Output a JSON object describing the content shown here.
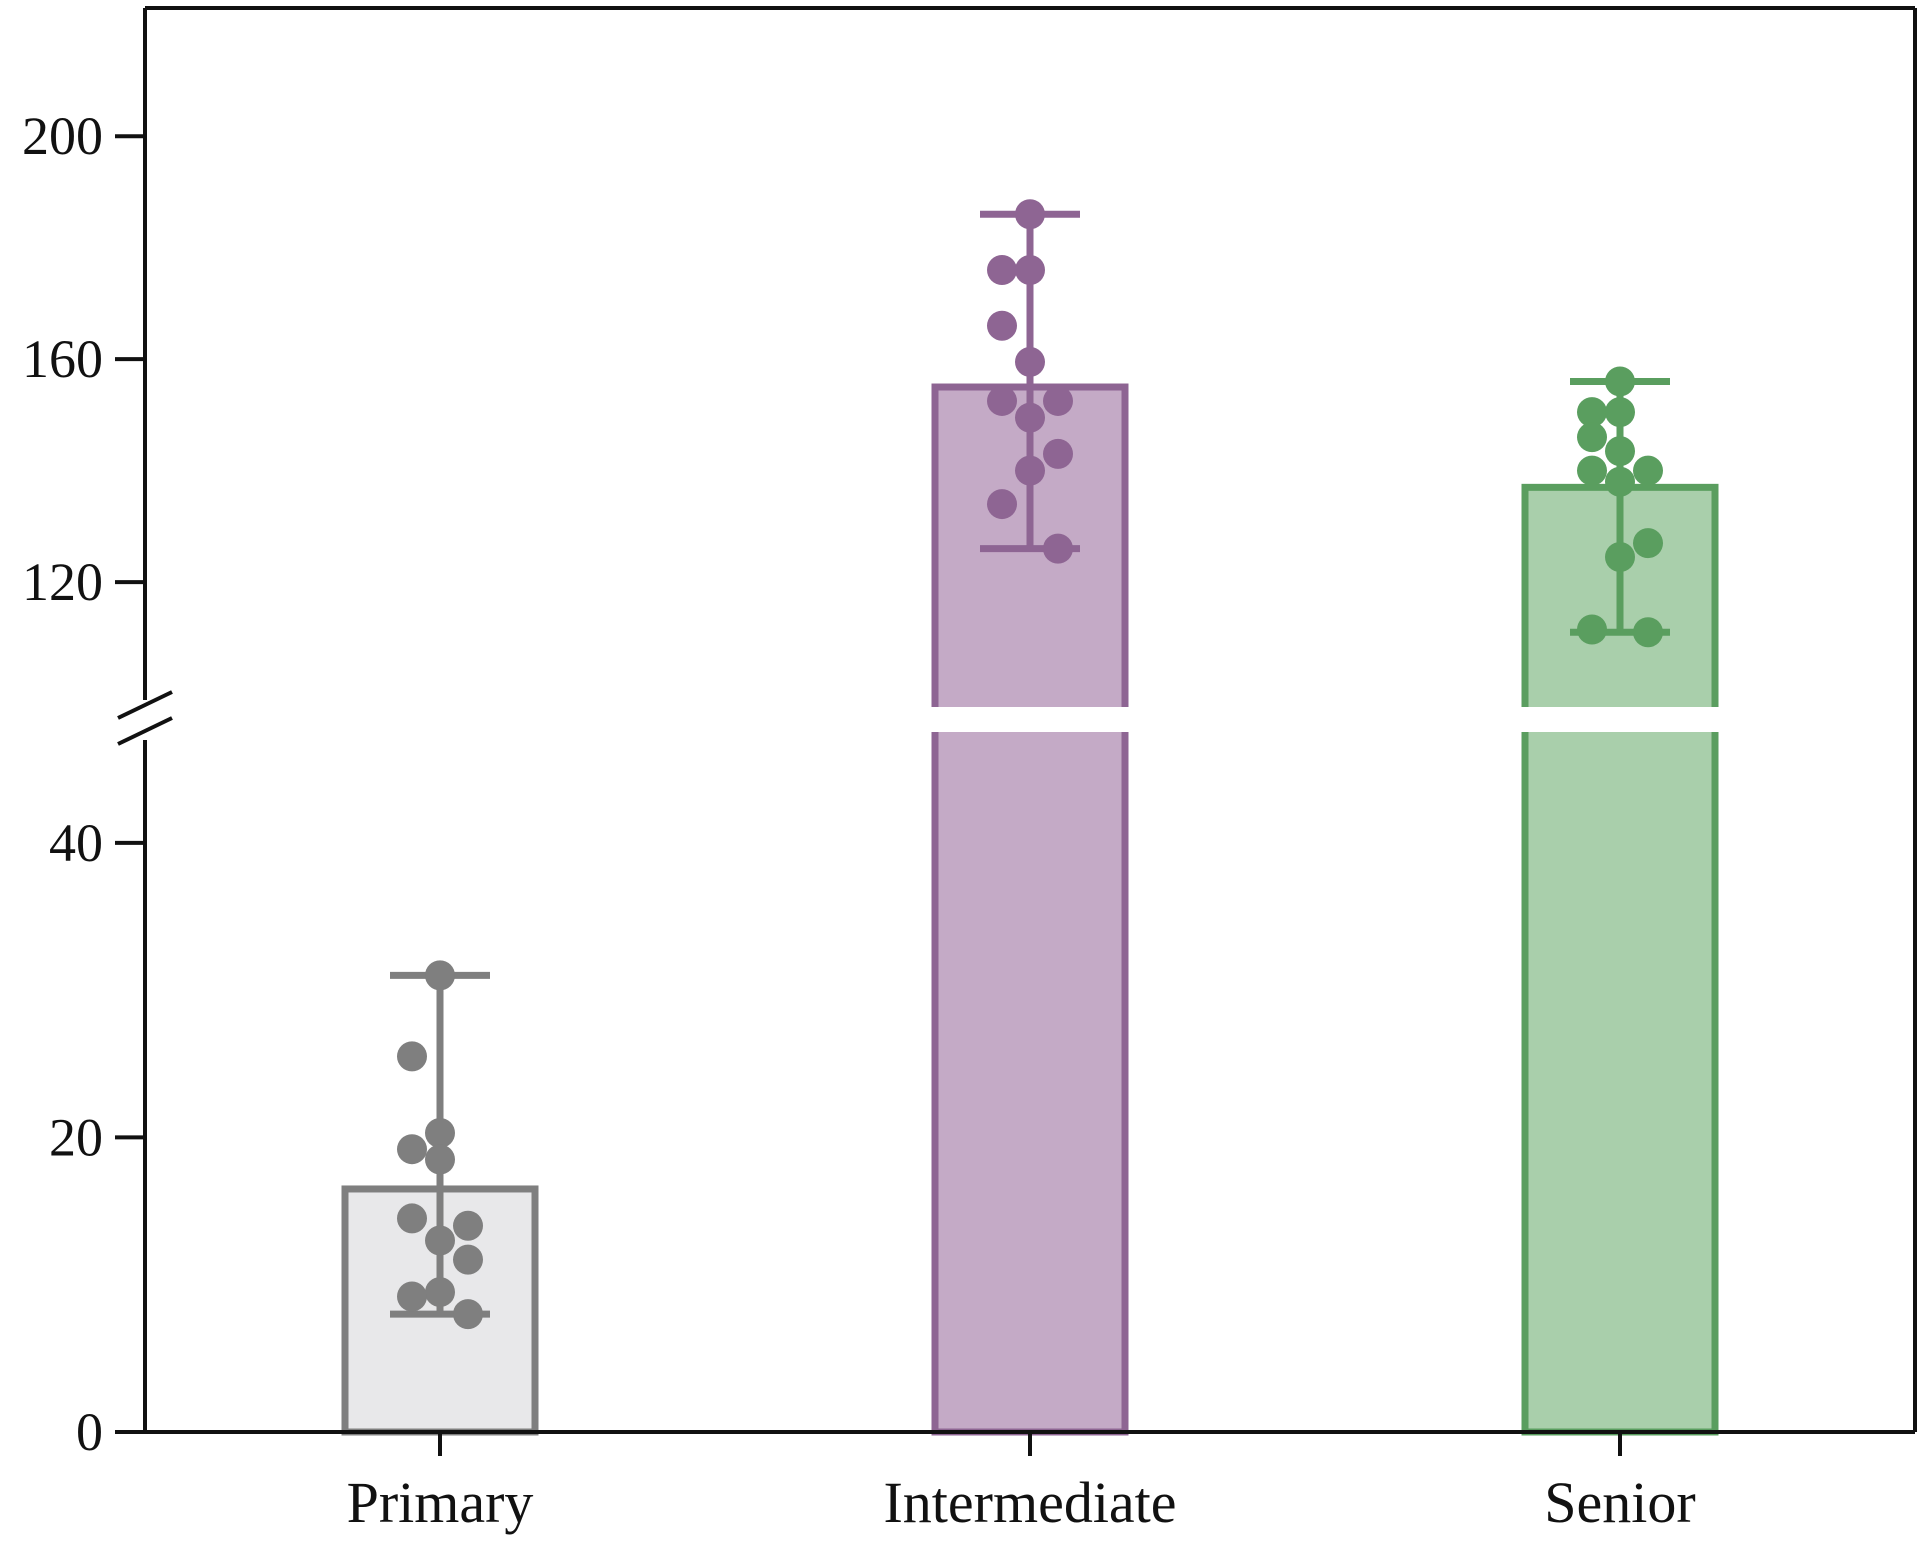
{
  "chart_data": {
    "type": "bar",
    "title": "",
    "xlabel": "",
    "ylabel": "",
    "categories": [
      "Primary",
      "Intermediate",
      "Senior"
    ],
    "values": [
      16.5,
      155,
      137
    ],
    "error_low": [
      8,
      126,
      111
    ],
    "error_high": [
      31,
      186,
      156
    ],
    "points": [
      [
        31,
        25.5,
        20.3,
        19.2,
        18.5,
        14.5,
        14,
        13,
        11.7,
        9.5,
        9.2,
        8
      ],
      [
        186,
        176,
        176,
        166,
        159.5,
        152.5,
        152.5,
        149.5,
        143,
        140,
        134,
        126
      ],
      [
        156,
        150.5,
        150.5,
        146,
        143.5,
        140,
        140,
        138,
        127,
        124.5,
        111.5,
        111
      ]
    ],
    "y_axis_break": {
      "lower": [
        0,
        48
      ],
      "upper": [
        101,
        223
      ]
    },
    "ylim": [
      0,
      223
    ],
    "lower_ticks": [
      0,
      20,
      40
    ],
    "upper_ticks": [
      120,
      160,
      200
    ],
    "grid": false,
    "colors": {
      "stroke": [
        "#7f7f7f",
        "#8e6593",
        "#5a9e5f"
      ],
      "fill": [
        "#e8e8ea",
        "#c4aac6",
        "#a9cfab"
      ],
      "axis": "#111111"
    }
  }
}
